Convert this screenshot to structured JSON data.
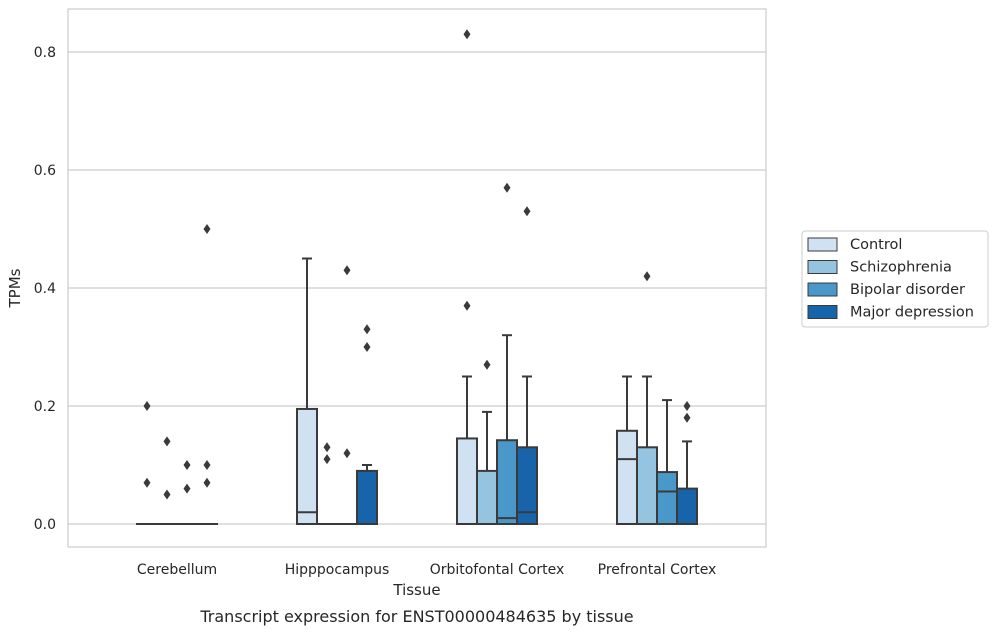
{
  "caption": "Transcript expression for ENST00000484635 by tissue",
  "chart_data": {
    "type": "box",
    "xlabel": "Tissue",
    "ylabel": "TPMs",
    "ylim": [
      -0.04,
      0.875
    ],
    "yticks": [
      "0.0",
      "0.2",
      "0.4",
      "0.6",
      "0.8"
    ],
    "ytick_values": [
      0.0,
      0.2,
      0.4,
      0.6,
      0.8
    ],
    "grid": "horizontal",
    "legend_position": "right",
    "categories": [
      "Cerebellum",
      "Hipppocampus",
      "Orbitofontal Cortex",
      "Prefrontal Cortex"
    ],
    "series": [
      {
        "name": "Control",
        "color": "#d0e1f2",
        "boxes": [
          {
            "q1": 0,
            "median": 0,
            "q3": 0,
            "whisker_low": 0,
            "whisker_high": 0,
            "outliers": [
              0.2,
              0.07
            ]
          },
          {
            "q1": 0,
            "median": 0.02,
            "q3": 0.195,
            "whisker_low": 0,
            "whisker_high": 0.45,
            "outliers": []
          },
          {
            "q1": 0,
            "median": 0,
            "q3": 0.145,
            "whisker_low": 0,
            "whisker_high": 0.25,
            "outliers": [
              0.83,
              0.37
            ]
          },
          {
            "q1": 0,
            "median": 0.11,
            "q3": 0.158,
            "whisker_low": 0,
            "whisker_high": 0.25,
            "outliers": []
          }
        ]
      },
      {
        "name": "Schizophrenia",
        "color": "#94c4df",
        "boxes": [
          {
            "q1": 0,
            "median": 0,
            "q3": 0,
            "whisker_low": 0,
            "whisker_high": 0,
            "outliers": [
              0.14,
              0.05
            ]
          },
          {
            "q1": 0,
            "median": 0,
            "q3": 0,
            "whisker_low": 0,
            "whisker_high": 0,
            "outliers": [
              0.13,
              0.11
            ]
          },
          {
            "q1": 0,
            "median": 0,
            "q3": 0.09,
            "whisker_low": 0,
            "whisker_high": 0.19,
            "outliers": [
              0.27
            ]
          },
          {
            "q1": 0,
            "median": 0,
            "q3": 0.13,
            "whisker_low": 0,
            "whisker_high": 0.25,
            "outliers": [
              0.42
            ]
          }
        ]
      },
      {
        "name": "Bipolar disorder",
        "color": "#4a98c9",
        "boxes": [
          {
            "q1": 0,
            "median": 0,
            "q3": 0,
            "whisker_low": 0,
            "whisker_high": 0,
            "outliers": [
              0.1,
              0.06
            ]
          },
          {
            "q1": 0,
            "median": 0,
            "q3": 0,
            "whisker_low": 0,
            "whisker_high": 0,
            "outliers": [
              0.43,
              0.12
            ]
          },
          {
            "q1": 0,
            "median": 0.01,
            "q3": 0.142,
            "whisker_low": 0,
            "whisker_high": 0.32,
            "outliers": [
              0.57
            ]
          },
          {
            "q1": 0,
            "median": 0.055,
            "q3": 0.088,
            "whisker_low": 0,
            "whisker_high": 0.21,
            "outliers": []
          }
        ]
      },
      {
        "name": "Major depression",
        "color": "#1764ab",
        "boxes": [
          {
            "q1": 0,
            "median": 0,
            "q3": 0,
            "whisker_low": 0,
            "whisker_high": 0,
            "outliers": [
              0.5,
              0.1,
              0.07
            ]
          },
          {
            "q1": 0,
            "median": 0,
            "q3": 0.09,
            "whisker_low": 0,
            "whisker_high": 0.1,
            "outliers": [
              0.33,
              0.3
            ]
          },
          {
            "q1": 0,
            "median": 0.02,
            "q3": 0.13,
            "whisker_low": 0,
            "whisker_high": 0.25,
            "outliers": [
              0.53
            ]
          },
          {
            "q1": 0,
            "median": 0,
            "q3": 0.06,
            "whisker_low": 0,
            "whisker_high": 0.14,
            "outliers": [
              0.2,
              0.18
            ]
          }
        ]
      }
    ]
  }
}
